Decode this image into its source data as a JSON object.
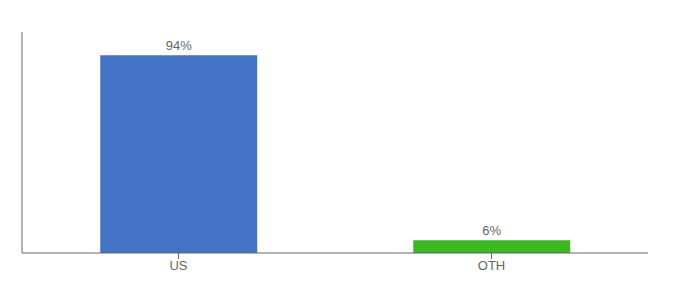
{
  "chart_data": {
    "type": "bar",
    "categories": [
      "US",
      "OTH"
    ],
    "values": [
      94,
      6
    ],
    "value_labels": [
      "94%",
      "6%"
    ],
    "colors": [
      "#4472c4",
      "#3cb820"
    ],
    "ylim": [
      0,
      105
    ],
    "data_labels": true,
    "tick_labels": "x",
    "grid": false
  }
}
